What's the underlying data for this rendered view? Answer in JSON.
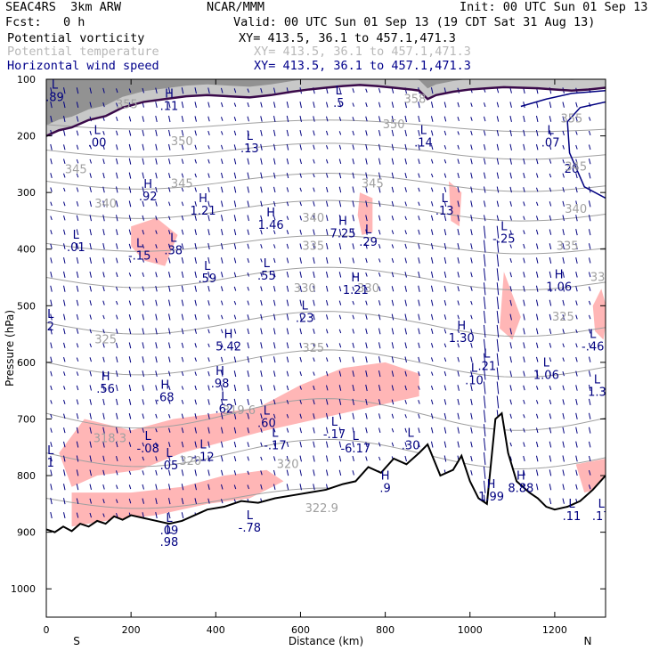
{
  "header": {
    "title": "SEAC4RS  3km ARW",
    "org": "NCAR/MMM",
    "init": "Init: 00 UTC Sun 01 Sep 13",
    "fcst": "Fcst:   0 h",
    "valid": "Valid: 00 UTC Sun 01 Sep 13 (19 CDT Sat 31 Aug 13)",
    "fields": [
      {
        "name": "Potential vorticity",
        "xy": "XY= 413.5, 36.1 to 457.1,471.3"
      },
      {
        "name": "Potential temperature",
        "xy": "XY= 413.5, 36.1 to 457.1,471.3"
      },
      {
        "name": "Horizontal wind speed",
        "xy": "XY= 413.5, 36.1 to 457.1,471.3"
      }
    ]
  },
  "chart_data": {
    "type": "cross-section",
    "xlabel": "Distance (km)",
    "ylabel": "Pressure (hPa)",
    "xlim": [
      0,
      1320
    ],
    "ylim": [
      1050,
      100
    ],
    "x_ticks": [
      0,
      200,
      400,
      600,
      800,
      1000,
      1200
    ],
    "y_ticks": [
      100,
      200,
      300,
      400,
      500,
      600,
      700,
      800,
      900,
      1000
    ],
    "x_endpoints": {
      "left": "S",
      "right": "N"
    },
    "terrain": [
      [
        0,
        895
      ],
      [
        20,
        900
      ],
      [
        40,
        890
      ],
      [
        60,
        898
      ],
      [
        80,
        885
      ],
      [
        100,
        890
      ],
      [
        120,
        880
      ],
      [
        140,
        885
      ],
      [
        160,
        872
      ],
      [
        180,
        878
      ],
      [
        200,
        870
      ],
      [
        230,
        875
      ],
      [
        260,
        880
      ],
      [
        290,
        885
      ],
      [
        320,
        880
      ],
      [
        350,
        870
      ],
      [
        380,
        860
      ],
      [
        420,
        855
      ],
      [
        460,
        845
      ],
      [
        500,
        848
      ],
      [
        540,
        840
      ],
      [
        580,
        835
      ],
      [
        620,
        830
      ],
      [
        660,
        825
      ],
      [
        700,
        815
      ],
      [
        730,
        810
      ],
      [
        760,
        785
      ],
      [
        790,
        795
      ],
      [
        820,
        770
      ],
      [
        850,
        780
      ],
      [
        880,
        760
      ],
      [
        900,
        745
      ],
      [
        930,
        800
      ],
      [
        960,
        790
      ],
      [
        980,
        765
      ],
      [
        1000,
        810
      ],
      [
        1020,
        840
      ],
      [
        1040,
        850
      ],
      [
        1060,
        700
      ],
      [
        1075,
        690
      ],
      [
        1090,
        760
      ],
      [
        1110,
        810
      ],
      [
        1140,
        830
      ],
      [
        1160,
        840
      ],
      [
        1180,
        855
      ],
      [
        1200,
        860
      ],
      [
        1230,
        855
      ],
      [
        1260,
        845
      ],
      [
        1290,
        825
      ],
      [
        1320,
        800
      ]
    ],
    "pv_contour_2pvu": [
      [
        0,
        200
      ],
      [
        30,
        190
      ],
      [
        60,
        185
      ],
      [
        100,
        172
      ],
      [
        140,
        165
      ],
      [
        180,
        150
      ],
      [
        230,
        140
      ],
      [
        280,
        135
      ],
      [
        330,
        130
      ],
      [
        380,
        128
      ],
      [
        430,
        130
      ],
      [
        480,
        132
      ],
      [
        530,
        128
      ],
      [
        580,
        122
      ],
      [
        620,
        118
      ],
      [
        660,
        115
      ],
      [
        700,
        112
      ],
      [
        740,
        110
      ],
      [
        780,
        112
      ],
      [
        820,
        115
      ],
      [
        860,
        118
      ],
      [
        880,
        120
      ],
      [
        900,
        135
      ],
      [
        920,
        128
      ],
      [
        960,
        122
      ],
      [
        1000,
        118
      ],
      [
        1040,
        116
      ],
      [
        1080,
        114
      ],
      [
        1120,
        115
      ],
      [
        1160,
        116
      ],
      [
        1200,
        118
      ],
      [
        1240,
        120
      ],
      [
        1280,
        118
      ],
      [
        1320,
        115
      ]
    ],
    "theta_contour_labels": [
      {
        "label": "355",
        "x": 190,
        "p": 145
      },
      {
        "label": "350",
        "x": 320,
        "p": 210
      },
      {
        "label": "345",
        "x": 70,
        "p": 260
      },
      {
        "label": "345",
        "x": 320,
        "p": 285
      },
      {
        "label": "345",
        "x": 770,
        "p": 285
      },
      {
        "label": "345",
        "x": 1250,
        "p": 255
      },
      {
        "label": "340",
        "x": 140,
        "p": 320
      },
      {
        "label": "340",
        "x": 630,
        "p": 345
      },
      {
        "label": "340",
        "x": 1250,
        "p": 330
      },
      {
        "label": "335",
        "x": 630,
        "p": 395
      },
      {
        "label": "335",
        "x": 1230,
        "p": 395
      },
      {
        "label": "330",
        "x": 610,
        "p": 470
      },
      {
        "label": "330",
        "x": 760,
        "p": 470
      },
      {
        "label": "330",
        "x": 1310,
        "p": 450
      },
      {
        "label": "325",
        "x": 140,
        "p": 560
      },
      {
        "label": "325",
        "x": 630,
        "p": 575
      },
      {
        "label": "325",
        "x": 1220,
        "p": 520
      },
      {
        "label": "320",
        "x": 340,
        "p": 775
      },
      {
        "label": "320",
        "x": 570,
        "p": 780
      },
      {
        "label": "319.6",
        "x": 455,
        "p": 685
      },
      {
        "label": "318.3",
        "x": 150,
        "p": 735
      },
      {
        "label": "322.9",
        "x": 650,
        "p": 858
      },
      {
        "label": "350",
        "x": 820,
        "p": 180
      },
      {
        "label": "355",
        "x": 1240,
        "p": 170
      },
      {
        "label": "358",
        "x": 870,
        "p": 135
      }
    ],
    "wind_contour_labels": [
      {
        "label": "20",
        "x": 1240,
        "p": 265
      }
    ],
    "extrema": [
      {
        "type": "L",
        "value": ".89",
        "x": 20,
        "p": 120
      },
      {
        "type": "L",
        "value": ".00",
        "x": 120,
        "p": 200
      },
      {
        "type": "H",
        "value": ".11",
        "x": 290,
        "p": 135
      },
      {
        "type": "L",
        "value": ".13",
        "x": 480,
        "p": 210
      },
      {
        "type": "L",
        "value": ".5",
        "x": 690,
        "p": 130
      },
      {
        "type": "L",
        "value": ".14",
        "x": 890,
        "p": 200
      },
      {
        "type": "L",
        "value": ".07",
        "x": 1190,
        "p": 200
      },
      {
        "type": "H",
        "value": ".92",
        "x": 240,
        "p": 295
      },
      {
        "type": "H",
        "value": "1.21",
        "x": 370,
        "p": 320
      },
      {
        "type": "H",
        "value": "1.46",
        "x": 530,
        "p": 345
      },
      {
        "type": "H",
        "value": "7.25",
        "x": 700,
        "p": 360
      },
      {
        "type": "L",
        "value": ".29",
        "x": 760,
        "p": 375
      },
      {
        "type": "L",
        "value": ".13",
        "x": 940,
        "p": 320
      },
      {
        "type": "L",
        "value": "-.25",
        "x": 1080,
        "p": 370
      },
      {
        "type": "L",
        "value": ".01",
        "x": 70,
        "p": 385
      },
      {
        "type": "L",
        "value": "-.15",
        "x": 220,
        "p": 400
      },
      {
        "type": "L",
        "value": ".38",
        "x": 300,
        "p": 390
      },
      {
        "type": "L",
        "value": ".59",
        "x": 380,
        "p": 440
      },
      {
        "type": "L",
        "value": ".55",
        "x": 520,
        "p": 435
      },
      {
        "type": "H",
        "value": "1.21",
        "x": 730,
        "p": 460
      },
      {
        "type": "H",
        "value": "1.06",
        "x": 1210,
        "p": 455
      },
      {
        "type": "L",
        "value": ".23",
        "x": 610,
        "p": 510
      },
      {
        "type": "H",
        "value": "1.30",
        "x": 980,
        "p": 545
      },
      {
        "type": "L",
        "value": "2",
        "x": 10,
        "p": 525
      },
      {
        "type": "H",
        "value": "5.42",
        "x": 430,
        "p": 560
      },
      {
        "type": "L",
        "value": "-.46",
        "x": 1290,
        "p": 560
      },
      {
        "type": "L",
        "value": ".21",
        "x": 1040,
        "p": 595
      },
      {
        "type": "L",
        "value": ".10",
        "x": 1010,
        "p": 620
      },
      {
        "type": "L",
        "value": "1.06",
        "x": 1180,
        "p": 610
      },
      {
        "type": "L",
        "value": "1.3",
        "x": 1300,
        "p": 640
      },
      {
        "type": "H",
        "value": ".56",
        "x": 140,
        "p": 635
      },
      {
        "type": "H",
        "value": ".68",
        "x": 280,
        "p": 650
      },
      {
        "type": "H",
        "value": ".98",
        "x": 410,
        "p": 625
      },
      {
        "type": "L",
        "value": ".62",
        "x": 420,
        "p": 670
      },
      {
        "type": "L",
        "value": ".60",
        "x": 520,
        "p": 695
      },
      {
        "type": "L",
        "value": "-.17",
        "x": 540,
        "p": 735
      },
      {
        "type": "L",
        "value": "-.17",
        "x": 680,
        "p": 715
      },
      {
        "type": "L",
        "value": "-6.17",
        "x": 730,
        "p": 740
      },
      {
        "type": "L",
        "value": ".30",
        "x": 860,
        "p": 735
      },
      {
        "type": "L",
        "value": "-.08",
        "x": 240,
        "p": 740
      },
      {
        "type": "L",
        "value": ".05",
        "x": 290,
        "p": 770
      },
      {
        "type": "L",
        "value": "-.12",
        "x": 370,
        "p": 755
      },
      {
        "type": "L",
        "value": "1",
        "x": 10,
        "p": 765
      },
      {
        "type": "H",
        "value": ".9",
        "x": 800,
        "p": 810
      },
      {
        "type": "H",
        "value": "8.88",
        "x": 1120,
        "p": 810
      },
      {
        "type": "H",
        "value": "1.99",
        "x": 1050,
        "p": 825
      },
      {
        "type": "L",
        "value": ".11",
        "x": 1240,
        "p": 860
      },
      {
        "type": "L",
        "value": ".17",
        "x": 1310,
        "p": 860
      },
      {
        "type": "L",
        "value": ".09",
        "x": 290,
        "p": 885
      },
      {
        "type": "L",
        "value": ".98",
        "x": 290,
        "p": 905
      },
      {
        "type": "L",
        "value": "-.78",
        "x": 480,
        "p": 880
      }
    ],
    "pv_shading_color": "#ffb6b6",
    "pv_contour_color": "#3a0a4a",
    "theta_color": "#a0a0a0",
    "wind_color": "#000080"
  }
}
